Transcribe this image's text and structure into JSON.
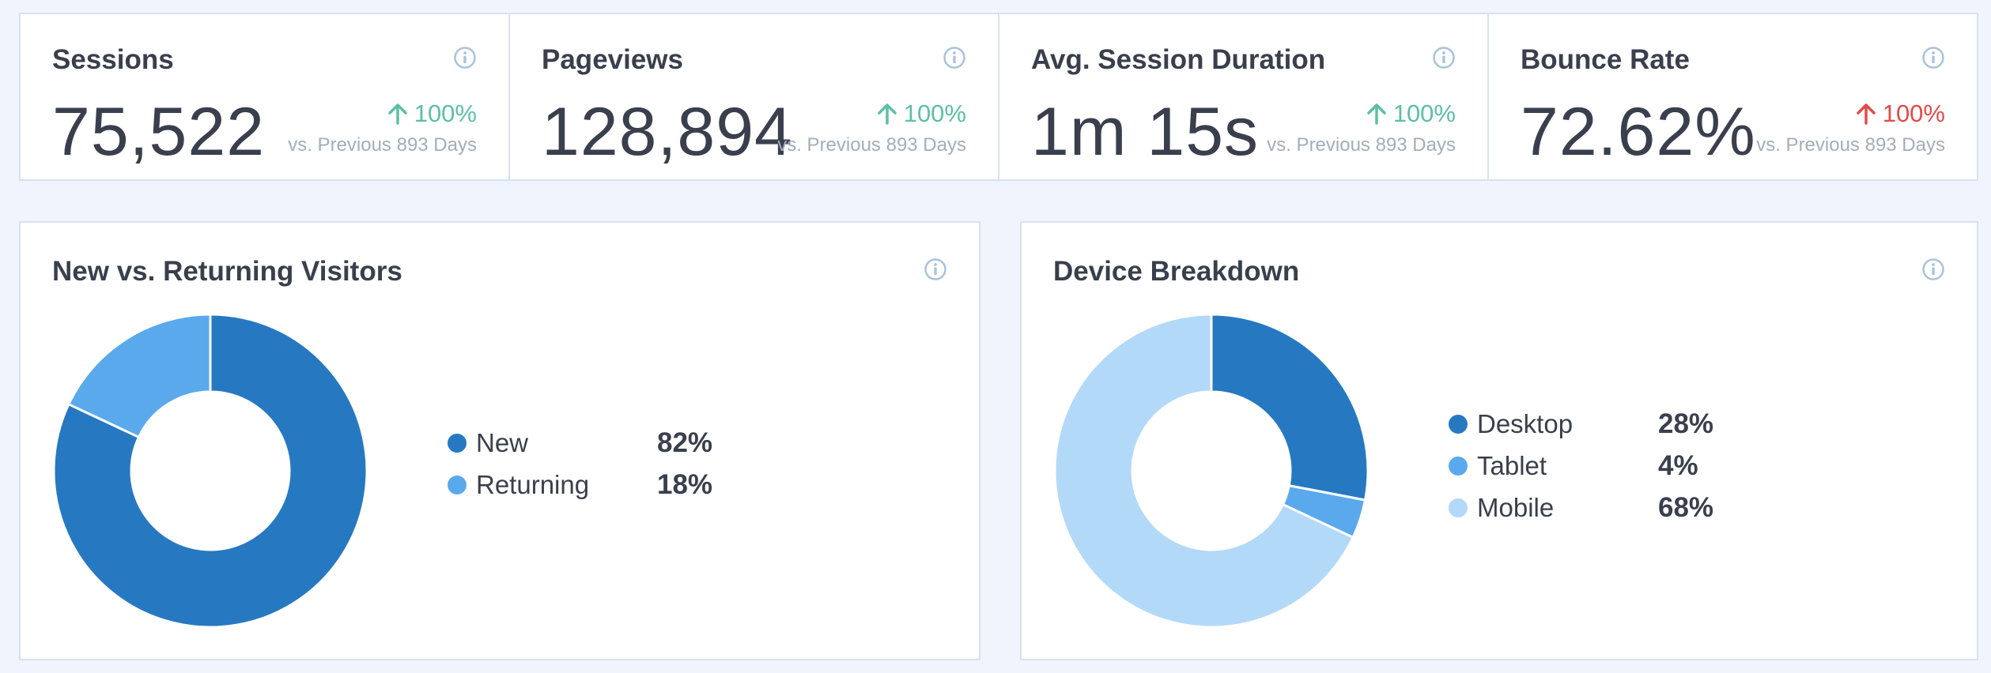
{
  "stats": [
    {
      "title": "Sessions",
      "value": "75,522",
      "change": "100%",
      "trend": "up",
      "change_color": "#5cc0a4",
      "compare": "vs. Previous 893 Days"
    },
    {
      "title": "Pageviews",
      "value": "128,894",
      "change": "100%",
      "trend": "up",
      "change_color": "#5cc0a4",
      "compare": "vs. Previous 893 Days"
    },
    {
      "title": "Avg. Session Duration",
      "value": "1m 15s",
      "change": "100%",
      "trend": "up",
      "change_color": "#5cc0a4",
      "compare": "vs. Previous 893 Days"
    },
    {
      "title": "Bounce Rate",
      "value": "72.62%",
      "change": "100%",
      "trend": "up",
      "change_color": "#e24b4b",
      "compare": "vs. Previous 893 Days"
    }
  ],
  "visitors": {
    "title": "New vs. Returning Visitors",
    "items": [
      {
        "label": "New",
        "value_text": "82%",
        "value": 82,
        "color": "#2679c1"
      },
      {
        "label": "Returning",
        "value_text": "18%",
        "value": 18,
        "color": "#5aa9ec"
      }
    ]
  },
  "devices": {
    "title": "Device Breakdown",
    "items": [
      {
        "label": "Desktop",
        "value_text": "28%",
        "value": 28,
        "color": "#2679c1"
      },
      {
        "label": "Tablet",
        "value_text": "4%",
        "value": 4,
        "color": "#5aa9ec"
      },
      {
        "label": "Mobile",
        "value_text": "68%",
        "value": 68,
        "color": "#b3d9f9"
      }
    ]
  },
  "icons": {
    "info": "info-icon",
    "trend": "arrow-up-icon"
  },
  "chart_data": [
    {
      "type": "pie",
      "title": "New vs. Returning Visitors",
      "categories": [
        "New",
        "Returning"
      ],
      "values": [
        82,
        18
      ]
    },
    {
      "type": "pie",
      "title": "Device Breakdown",
      "categories": [
        "Desktop",
        "Tablet",
        "Mobile"
      ],
      "values": [
        28,
        4,
        68
      ]
    }
  ]
}
